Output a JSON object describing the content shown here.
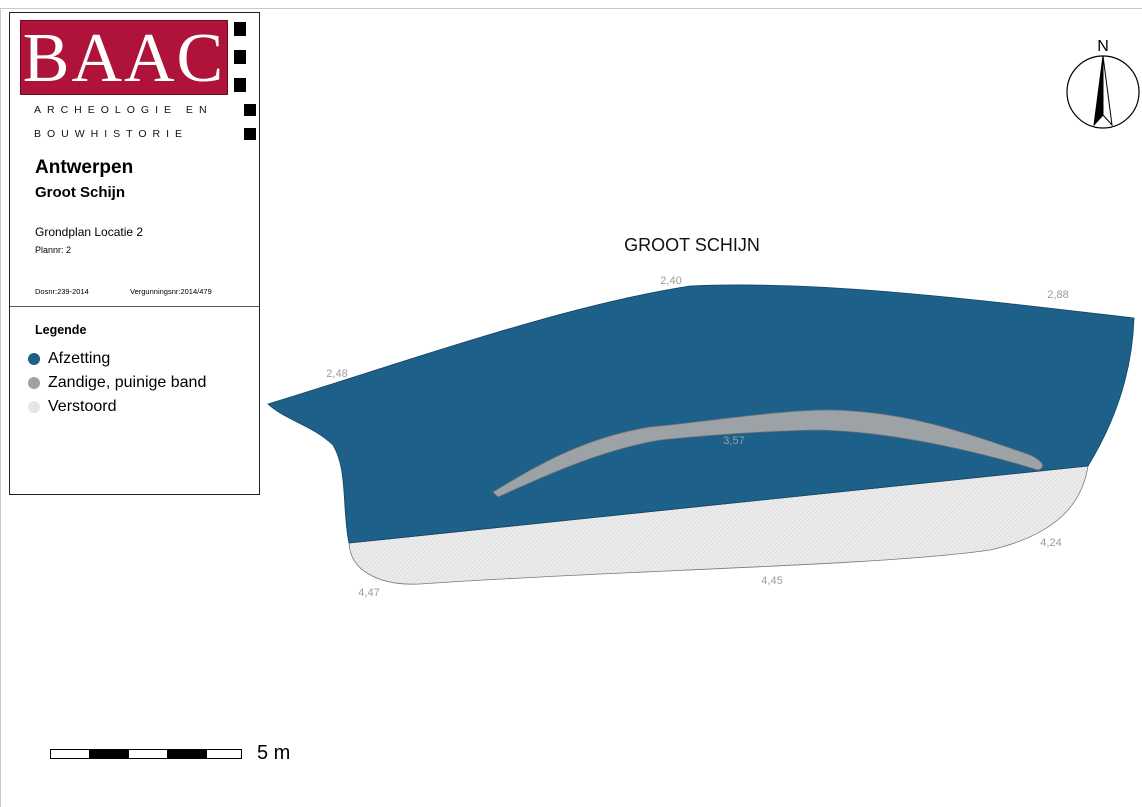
{
  "header": {
    "logo_text": "BAAC",
    "logo_line_1": "ARCHEOLOGIE EN",
    "logo_line_2": "BOUWHISTORIE",
    "place": "Antwerpen",
    "site": "Groot Schijn",
    "plan_title": "Grondplan Locatie 2",
    "plan_nr": "Plannr: 2",
    "dos_nr": "Dosnr:239-2014",
    "vergunning_nr": "Vergunningsnr:2014/479"
  },
  "legend": {
    "title": "Legende",
    "items": [
      {
        "label": "Afzetting",
        "color": "#1d6089"
      },
      {
        "label": "Zandige, puinige band",
        "color": "#9da2a6"
      },
      {
        "label": "Verstoord",
        "color": "#e6e6e6"
      }
    ]
  },
  "map": {
    "title": "GROOT SCHIJN",
    "north_label": "N",
    "depth_labels": [
      "2,48",
      "2,40",
      "2,88",
      "3,57",
      "4,47",
      "4,45",
      "4,24"
    ]
  },
  "scale": {
    "label": "5 m"
  },
  "colors": {
    "afzetting": "#1d6089",
    "band": "#9da2a6",
    "verstoord": "#e6e6e6",
    "logo_red": "#b0133a"
  }
}
